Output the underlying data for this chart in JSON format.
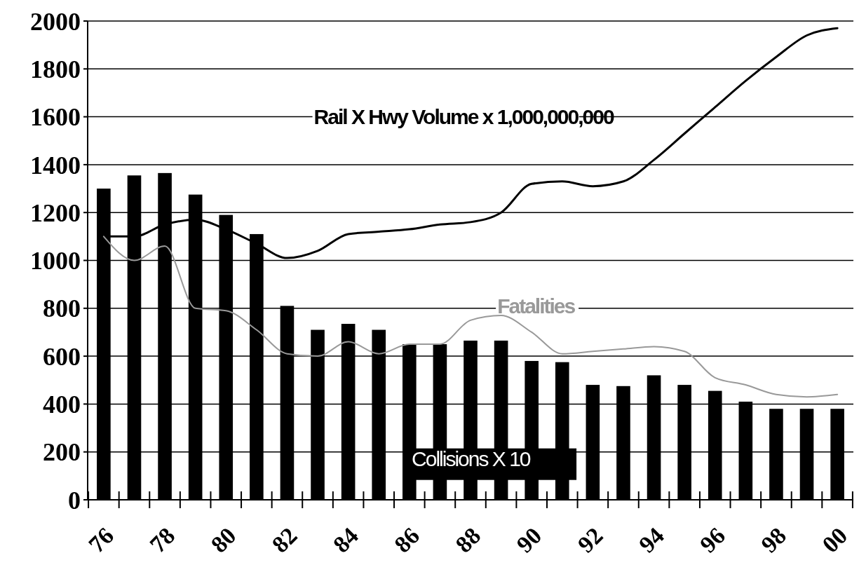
{
  "chart_data": {
    "type": "bar",
    "categories": [
      "76",
      null,
      "78",
      null,
      "80",
      null,
      "82",
      null,
      "84",
      null,
      "86",
      null,
      "88",
      null,
      "90",
      null,
      "92",
      null,
      "94",
      null,
      "96",
      null,
      "98",
      null,
      "00"
    ],
    "series": [
      {
        "name": "Collisions X 10",
        "color": "#000000",
        "values": [
          1300,
          1355,
          1365,
          1275,
          1190,
          1110,
          810,
          710,
          735,
          710,
          650,
          650,
          665,
          665,
          580,
          575,
          480,
          475,
          520,
          480,
          455,
          410,
          380,
          380,
          380
        ]
      },
      {
        "name": "Rail X Hwy Volume x 1,000,000,000",
        "type": "line",
        "color": "#000000",
        "values": [
          1100,
          1100,
          1150,
          1170,
          1130,
          1070,
          1010,
          1040,
          1110,
          1120,
          1130,
          1150,
          1160,
          1200,
          1320,
          1330,
          1310,
          1330,
          1420,
          1530,
          1640,
          1750,
          1850,
          1940,
          1970
        ]
      },
      {
        "name": "Fatalities",
        "type": "line",
        "color": "#999999",
        "values": [
          1100,
          1000,
          1060,
          800,
          790,
          710,
          610,
          600,
          660,
          610,
          650,
          650,
          750,
          770,
          700,
          610,
          620,
          630,
          640,
          620,
          510,
          480,
          440,
          430,
          440
        ]
      }
    ],
    "ylim": [
      0,
      2000
    ],
    "yticks": [
      0,
      200,
      400,
      600,
      800,
      1000,
      1200,
      1400,
      1600,
      1800,
      2000
    ],
    "grid": "y",
    "legend": false
  }
}
